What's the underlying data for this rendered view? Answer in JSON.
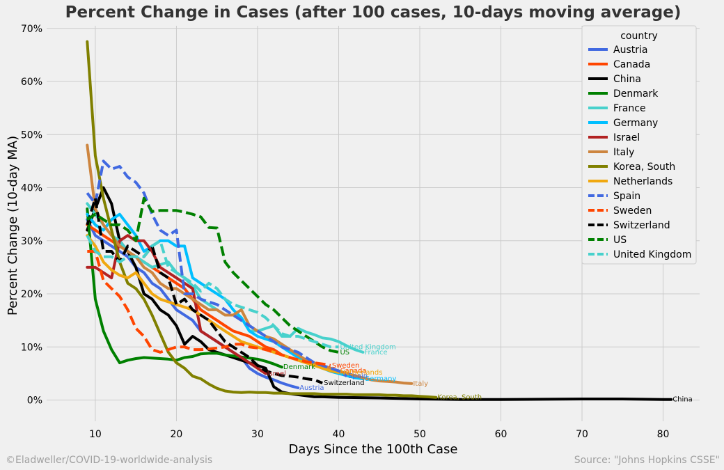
{
  "footer": {
    "left": "©Eladweller/COVID-19-worldwide-analysis",
    "right": "Source: \"Johns Hopkins CSSE\""
  },
  "chart_data": {
    "type": "line",
    "title": "Percent Change in Cases (after 100 cases, 10-days moving average)",
    "xlabel": "Days Since the 100th Case",
    "ylabel": "Percent Change (10-day MA)",
    "xlim": [
      4,
      84.5
    ],
    "ylim": [
      -4,
      70.5
    ],
    "xticks": [
      10,
      20,
      30,
      40,
      50,
      60,
      70,
      80
    ],
    "yticks": [
      0,
      10,
      20,
      30,
      40,
      50,
      60,
      70
    ],
    "ytick_format": "percent",
    "grid": true,
    "legend": {
      "title": "country",
      "position": "top-right"
    },
    "series": [
      {
        "name": "Austria",
        "color": "#4169e1",
        "dash": false,
        "end_label": "Austria",
        "x": [
          9,
          10,
          11,
          12,
          13,
          14,
          15,
          16,
          17,
          18,
          19,
          20,
          21,
          22,
          23,
          24,
          25,
          26,
          27,
          28,
          29,
          30,
          31,
          32,
          33,
          34,
          35
        ],
        "y": [
          34,
          31,
          30,
          29,
          28,
          27,
          25,
          24,
          22,
          21,
          19,
          17,
          16,
          15,
          13,
          12,
          11,
          10,
          9,
          8,
          6,
          5,
          4.3,
          3.8,
          3.2,
          2.7,
          2.3
        ]
      },
      {
        "name": "Canada",
        "color": "#ff4500",
        "dash": false,
        "end_label": "Canada",
        "x": [
          9,
          10,
          11,
          12,
          13,
          14,
          15,
          16,
          17,
          18,
          19,
          20,
          21,
          22,
          23,
          24,
          25,
          26,
          27,
          28,
          29,
          30,
          31,
          32,
          33,
          34,
          35,
          36,
          37,
          38,
          39,
          40
        ],
        "y": [
          33,
          32,
          31,
          30,
          29,
          28,
          27,
          26,
          25,
          24,
          23,
          22,
          21,
          19,
          17,
          16,
          15,
          14,
          13,
          12.5,
          12,
          11,
          10,
          9.5,
          8.5,
          8,
          7.5,
          7,
          6.8,
          6.5,
          6,
          5.5
        ]
      },
      {
        "name": "China",
        "color": "#000000",
        "dash": false,
        "end_label": "China",
        "x": [
          9,
          10,
          11,
          12,
          13,
          14,
          15,
          16,
          17,
          18,
          19,
          20,
          21,
          22,
          23,
          24,
          25,
          26,
          27,
          28,
          29,
          30,
          31,
          32,
          33,
          34,
          35,
          36,
          37,
          38,
          40,
          45,
          50,
          55,
          60,
          70,
          75,
          80,
          81
        ],
        "y": [
          32,
          36,
          40,
          37,
          30,
          28,
          25,
          20,
          19,
          17,
          16,
          14,
          10.5,
          12,
          11,
          9.5,
          9,
          8.5,
          8,
          7.5,
          7,
          6.5,
          6,
          2.5,
          1.5,
          1.2,
          1,
          0.8,
          0.6,
          0.6,
          0.5,
          0.4,
          0.2,
          0.1,
          0.1,
          0.2,
          0.2,
          0.1,
          0.1
        ]
      },
      {
        "name": "Denmark",
        "color": "#008000",
        "dash": false,
        "end_label": "Denmark",
        "x": [
          9,
          10,
          11,
          12,
          13,
          14,
          15,
          16,
          17,
          18,
          19,
          20,
          21,
          22,
          23,
          24,
          25,
          26,
          27,
          28,
          29,
          30,
          31,
          32,
          33
        ],
        "y": [
          36,
          19,
          13,
          9.5,
          7,
          7.5,
          7.8,
          8,
          7.9,
          7.8,
          7.7,
          7.5,
          8,
          8.2,
          8.7,
          8.8,
          8.8,
          8.5,
          8.3,
          8.1,
          7.9,
          7.7,
          7.3,
          6.8,
          6.2
        ]
      },
      {
        "name": "France",
        "color": "#48d1cc",
        "dash": false,
        "end_label": "France",
        "x": [
          9,
          10,
          11,
          12,
          13,
          14,
          15,
          16,
          17,
          18,
          19,
          20,
          21,
          22,
          23,
          24,
          25,
          26,
          27,
          28,
          29,
          30,
          31,
          32,
          33,
          34,
          35,
          36,
          37,
          38,
          39,
          40,
          41,
          42,
          43
        ],
        "y": [
          37,
          35,
          33,
          31,
          30,
          28,
          27,
          26,
          25,
          25.5,
          26,
          24,
          23,
          21.5,
          19,
          18,
          17,
          16,
          16,
          15.5,
          13,
          13,
          13.5,
          14,
          12,
          12,
          13.5,
          12.8,
          12.3,
          11.7,
          11.5,
          11,
          10.2,
          9.5,
          9
        ]
      },
      {
        "name": "Germany",
        "color": "#00bfff",
        "dash": false,
        "end_label": "Germany",
        "x": [
          9,
          10,
          11,
          12,
          13,
          14,
          15,
          16,
          17,
          18,
          19,
          20,
          21,
          22,
          23,
          24,
          25,
          26,
          27,
          28,
          29,
          30,
          31,
          32,
          33,
          34,
          35,
          36,
          37,
          38,
          39,
          40,
          41,
          42,
          43
        ],
        "y": [
          35,
          33,
          32,
          34,
          35,
          33,
          31,
          28,
          29,
          30,
          30,
          29,
          29,
          23,
          22,
          21,
          20,
          19,
          17,
          15.5,
          13,
          12,
          11.5,
          11,
          10,
          9,
          8,
          7.2,
          6.6,
          6,
          5.4,
          5,
          4.6,
          4.2,
          4
        ]
      },
      {
        "name": "Israel",
        "color": "#b22222",
        "dash": false,
        "end_label": "Israel",
        "x": [
          9,
          10,
          11,
          12,
          13,
          14,
          15,
          16,
          17,
          18,
          19,
          20,
          21,
          22,
          23,
          24,
          25,
          26,
          27,
          28,
          29,
          30,
          31
        ],
        "y": [
          25,
          25,
          24,
          23,
          30,
          31,
          30,
          30,
          28,
          25,
          24,
          23,
          22,
          21,
          13,
          12,
          11,
          10,
          9,
          8,
          7,
          6,
          5
        ]
      },
      {
        "name": "Italy",
        "color": "#cd853f",
        "dash": false,
        "end_label": "Italy",
        "x": [
          9,
          10,
          11,
          12,
          13,
          14,
          15,
          16,
          17,
          18,
          19,
          20,
          21,
          22,
          23,
          24,
          25,
          26,
          27,
          28,
          29,
          30,
          31,
          32,
          33,
          34,
          35,
          36,
          37,
          38,
          39,
          40,
          41,
          42,
          43,
          44,
          45,
          46,
          47,
          48,
          49
        ],
        "y": [
          48,
          36,
          33,
          31,
          29,
          28,
          27,
          25,
          24,
          22,
          21,
          21,
          20,
          19,
          18,
          17,
          17,
          16,
          16,
          17,
          14,
          13,
          12,
          11.5,
          10.5,
          9.5,
          8.5,
          7.5,
          7,
          6.5,
          6,
          5.5,
          5,
          4.6,
          4.2,
          3.8,
          3.6,
          3.5,
          3.4,
          3.2,
          3.1
        ]
      },
      {
        "name": "Korea, South",
        "color": "#808000",
        "dash": false,
        "end_label": "Korea, South",
        "x": [
          9,
          10,
          11,
          12,
          13,
          14,
          15,
          16,
          17,
          18,
          19,
          20,
          21,
          22,
          23,
          24,
          25,
          26,
          27,
          28,
          29,
          30,
          31,
          32,
          33,
          34,
          35,
          36,
          37,
          38,
          39,
          40,
          41,
          42,
          43,
          44,
          45,
          46,
          47,
          48,
          49,
          50,
          51,
          52
        ],
        "y": [
          67.5,
          46,
          38,
          32,
          26,
          22,
          21,
          19,
          16,
          12.5,
          9,
          7,
          6,
          4.5,
          4,
          3,
          2.2,
          1.7,
          1.5,
          1.4,
          1.5,
          1.4,
          1.4,
          1.3,
          1.3,
          1.2,
          1.2,
          1.2,
          1.2,
          1.1,
          1.1,
          1.1,
          1.1,
          1,
          1,
          1,
          1,
          0.9,
          0.9,
          0.8,
          0.8,
          0.7,
          0.6,
          0.5
        ]
      },
      {
        "name": "Netherlands",
        "color": "#f0a810",
        "dash": false,
        "end_label": "Netherlands",
        "x": [
          9,
          10,
          11,
          12,
          13,
          14,
          15,
          16,
          17,
          18,
          19,
          20,
          21,
          22,
          23,
          24,
          25,
          26,
          27,
          28,
          29,
          30,
          31,
          32,
          33,
          34,
          35,
          36,
          37,
          38,
          39,
          40
        ],
        "y": [
          31,
          29,
          26,
          24.5,
          23.5,
          23,
          24,
          22,
          20,
          19,
          18.5,
          18,
          17.5,
          17,
          16,
          15,
          14,
          13,
          12,
          11,
          10.5,
          10,
          9.5,
          9,
          8.5,
          8,
          7.5,
          7,
          6.5,
          6,
          5.5,
          5.2
        ]
      },
      {
        "name": "Spain",
        "color": "#4169e1",
        "dash": true,
        "end_label": "Spain",
        "x": [
          9,
          10,
          11,
          12,
          13,
          14,
          15,
          16,
          17,
          18,
          19,
          20,
          21,
          22,
          23,
          24,
          25,
          26,
          27,
          28,
          29,
          30,
          31,
          32,
          33,
          34,
          35,
          36,
          37,
          38,
          39,
          40,
          41
        ],
        "y": [
          39,
          37,
          45,
          43.5,
          44,
          42,
          41,
          39,
          35,
          32,
          31,
          32,
          20,
          20,
          19,
          18.5,
          18,
          17,
          16,
          15,
          14,
          13,
          12,
          11,
          10,
          9.5,
          9,
          8,
          7,
          6.5,
          6,
          5.5,
          4.5
        ]
      },
      {
        "name": "Sweden",
        "color": "#ff4500",
        "dash": true,
        "end_label": "Sweden",
        "x": [
          9,
          10,
          11,
          12,
          13,
          14,
          15,
          16,
          17,
          18,
          19,
          20,
          21,
          22,
          23,
          24,
          25,
          26,
          27,
          28,
          29,
          30,
          31,
          32,
          33,
          34,
          35,
          36,
          37,
          38,
          39
        ],
        "y": [
          28,
          28,
          22.5,
          21,
          19.5,
          17,
          13.5,
          12,
          9.5,
          9,
          9.5,
          10,
          10,
          9.5,
          9.5,
          9.6,
          9.8,
          10,
          10.5,
          10.5,
          10,
          9.8,
          9.5,
          9,
          8.5,
          8,
          7.6,
          7.2,
          7,
          6.8,
          6.5
        ]
      },
      {
        "name": "Switzerland",
        "color": "#000000",
        "dash": true,
        "end_label": "Switzerland",
        "x": [
          9,
          10,
          11,
          12,
          13,
          14,
          15,
          16,
          17,
          18,
          19,
          20,
          21,
          22,
          23,
          24,
          25,
          26,
          27,
          28,
          29,
          30,
          31,
          32,
          33,
          34,
          35,
          36,
          37,
          38
        ],
        "y": [
          33,
          38,
          28,
          28,
          26,
          29,
          28,
          27,
          29,
          24,
          23,
          18,
          19,
          17,
          16,
          15,
          13,
          11,
          10,
          9,
          8,
          6.5,
          5.5,
          5,
          4.6,
          4.5,
          4.3,
          4,
          3.8,
          3.2
        ]
      },
      {
        "name": "US",
        "color": "#008000",
        "dash": true,
        "end_label": "US",
        "x": [
          9,
          10,
          11,
          12,
          13,
          14,
          15,
          16,
          17,
          18,
          19,
          20,
          21,
          22,
          23,
          24,
          25,
          26,
          27,
          28,
          29,
          30,
          31,
          32,
          33,
          34,
          35,
          36,
          37,
          38,
          39,
          40
        ],
        "y": [
          34,
          35,
          34,
          33,
          33,
          32,
          30,
          38,
          35.5,
          35.7,
          35.7,
          35.7,
          35.4,
          35,
          34.5,
          32.5,
          32.4,
          26,
          24,
          22.5,
          21,
          19.5,
          18,
          17,
          15.5,
          14,
          13,
          12,
          11,
          10,
          9.3,
          9
        ]
      },
      {
        "name": "United Kingdom",
        "color": "#48d1cc",
        "dash": true,
        "end_label": "United Kingdom",
        "x": [
          9,
          10,
          11,
          12,
          13,
          14,
          15,
          16,
          17,
          18,
          19,
          20,
          21,
          22,
          23,
          24,
          25,
          26,
          27,
          28,
          29,
          30,
          31,
          32,
          33,
          34,
          35,
          36,
          37,
          38,
          39,
          40
        ],
        "y": [
          31,
          28,
          27,
          27,
          26,
          27,
          27,
          27,
          29,
          30,
          25,
          24,
          23,
          22,
          20.5,
          22,
          21,
          19,
          18,
          17.5,
          17,
          16.5,
          15.5,
          14,
          12.5,
          12,
          12,
          11.5,
          11,
          10.5,
          10,
          10
        ]
      }
    ]
  }
}
